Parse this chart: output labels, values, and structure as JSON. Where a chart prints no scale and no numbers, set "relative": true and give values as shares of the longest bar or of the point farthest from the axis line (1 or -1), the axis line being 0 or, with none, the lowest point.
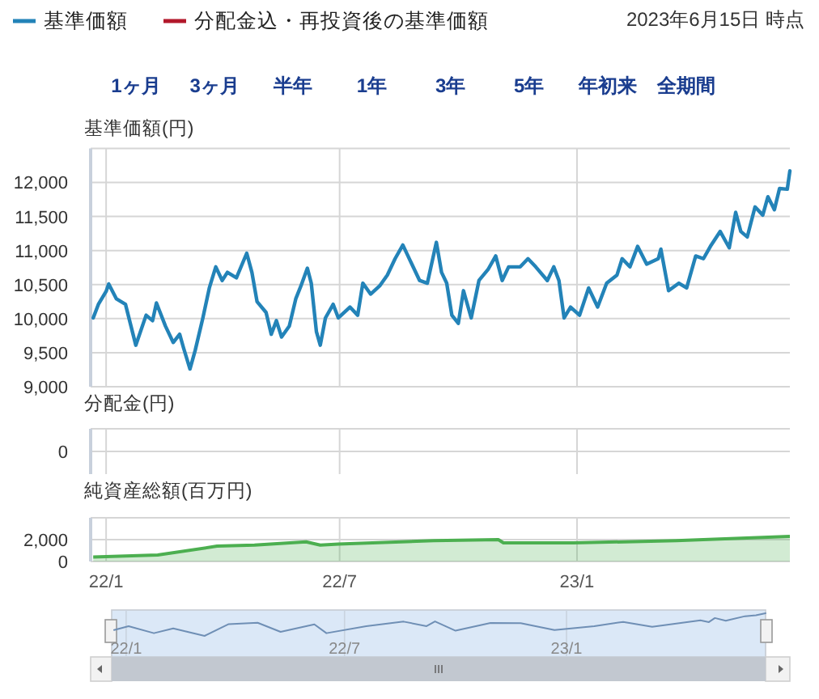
{
  "chart_data": [
    {
      "type": "line",
      "ylabel": "基準価額(円)",
      "legend": "top",
      "grid": true,
      "tick_labels": "y",
      "annotations": [
        "2023年6月15日 時点",
        "1ヶ月",
        "3ヶ月",
        "半年",
        "1年",
        "3年",
        "5年",
        "年初来",
        "全期間"
      ],
      "xlim": [
        "2021-12-20",
        "2023-06-15"
      ],
      "xticks": [
        {
          "value": "2022-01-01",
          "label": null
        },
        {
          "value": "2022-07-01",
          "label": null
        },
        {
          "value": "2023-01-01",
          "label": null
        }
      ],
      "ylim": [
        9000,
        12500
      ],
      "yticks": [
        {
          "value": 9000,
          "label": "9,000"
        },
        {
          "value": 9500,
          "label": "9,500"
        },
        {
          "value": 10000,
          "label": "10,000"
        },
        {
          "value": 10500,
          "label": "10,500"
        },
        {
          "value": 11000,
          "label": "11,000"
        },
        {
          "value": 11500,
          "label": "11,500"
        },
        {
          "value": 12000,
          "label": "12,000"
        }
      ],
      "x": [
        "2021-12-22",
        "2021-12-26",
        "2022-01-01",
        "2022-01-03",
        "2022-01-09",
        "2022-01-16",
        "2022-01-24",
        "2022-02-01",
        "2022-02-06",
        "2022-02-09",
        "2022-02-16",
        "2022-02-22",
        "2022-02-27",
        "2022-03-02",
        "2022-03-07",
        "2022-03-11",
        "2022-03-17",
        "2022-03-22",
        "2022-03-27",
        "2022-04-01",
        "2022-04-05",
        "2022-04-12",
        "2022-04-20",
        "2022-04-24",
        "2022-04-28",
        "2022-05-05",
        "2022-05-09",
        "2022-05-13",
        "2022-05-17",
        "2022-05-23",
        "2022-05-28",
        "2022-06-01",
        "2022-06-06",
        "2022-06-09",
        "2022-06-13",
        "2022-06-16",
        "2022-06-20",
        "2022-06-26",
        "2022-06-30",
        "2022-07-09",
        "2022-07-15",
        "2022-07-19",
        "2022-07-25",
        "2022-08-01",
        "2022-08-07",
        "2022-08-13",
        "2022-08-19",
        "2022-08-26",
        "2022-09-01",
        "2022-09-07",
        "2022-09-14",
        "2022-09-18",
        "2022-09-22",
        "2022-09-26",
        "2022-10-01",
        "2022-10-05",
        "2022-10-11",
        "2022-10-17",
        "2022-10-24",
        "2022-10-30",
        "2022-11-04",
        "2022-11-09",
        "2022-11-18",
        "2022-11-24",
        "2022-11-30",
        "2022-12-09",
        "2022-12-14",
        "2022-12-18",
        "2022-12-22",
        "2022-12-27",
        "2023-01-03",
        "2023-01-10",
        "2023-01-17",
        "2023-01-24",
        "2023-02-01",
        "2023-02-05",
        "2023-02-11",
        "2023-02-17",
        "2023-02-24",
        "2023-03-05",
        "2023-03-07",
        "2023-03-13",
        "2023-03-21",
        "2023-03-27",
        "2023-04-03",
        "2023-04-09",
        "2023-04-15",
        "2023-04-22",
        "2023-04-29",
        "2023-05-04",
        "2023-05-08",
        "2023-05-13",
        "2023-05-19",
        "2023-05-25",
        "2023-05-29",
        "2023-06-03",
        "2023-06-07",
        "2023-06-13",
        "2023-06-15"
      ],
      "series": [
        {
          "name": "基準価額",
          "color": "#2383b8",
          "values": [
            10010,
            10210,
            10400,
            10510,
            10290,
            10210,
            9610,
            10050,
            9970,
            10230,
            9890,
            9650,
            9770,
            9570,
            9260,
            9530,
            10010,
            10450,
            10760,
            10560,
            10680,
            10600,
            10960,
            10680,
            10250,
            10090,
            9770,
            9970,
            9730,
            9890,
            10290,
            10480,
            10740,
            10520,
            9810,
            9610,
            10010,
            10210,
            10010,
            10170,
            10050,
            10520,
            10360,
            10480,
            10640,
            10880,
            11080,
            10800,
            10560,
            10520,
            11120,
            10680,
            10520,
            10050,
            9930,
            10410,
            10010,
            10560,
            10720,
            10920,
            10560,
            10760,
            10760,
            10880,
            10760,
            10560,
            10760,
            10560,
            10010,
            10170,
            10050,
            10450,
            10170,
            10520,
            10640,
            10880,
            10760,
            11060,
            10800,
            10880,
            11020,
            10410,
            10520,
            10450,
            10920,
            10880,
            11080,
            11280,
            11040,
            11560,
            11280,
            11200,
            11640,
            11520,
            11790,
            11600,
            11910,
            11900,
            12170
          ]
        },
        {
          "name": "分配金込・再投資後の基準価額",
          "color": "#b2182b",
          "values": [
            null,
            null,
            null,
            null,
            null,
            null,
            null,
            null,
            null,
            null,
            null,
            null,
            null,
            null,
            null,
            null,
            null,
            null,
            null,
            null,
            null,
            null,
            null,
            null,
            null,
            null,
            null,
            null,
            null,
            null,
            null,
            null,
            null,
            null,
            null,
            null,
            null,
            null,
            null,
            null,
            null,
            null,
            null,
            null,
            null,
            null,
            null,
            null,
            null,
            null,
            null,
            null,
            null,
            null,
            null,
            null,
            null,
            null,
            null,
            null,
            null,
            null,
            null,
            null,
            null,
            null,
            null,
            null,
            null,
            null,
            null,
            null,
            null,
            null,
            null,
            null,
            null,
            null,
            null,
            null,
            null,
            null,
            null,
            null,
            null,
            null,
            null,
            null,
            null,
            null,
            null,
            null,
            null,
            null,
            null,
            null,
            null,
            null,
            null
          ]
        }
      ]
    },
    {
      "type": "other",
      "ylabel": "分配金(円)",
      "annotations": [
        "0"
      ]
    },
    {
      "type": "area",
      "ylabel": "純資産総額(百万円)",
      "grid": true,
      "color": "#4caf50",
      "xlim": [
        "2021-12-20",
        "2023-06-15"
      ],
      "xticks": [
        {
          "value": "2022-01-01",
          "label": "22/1"
        },
        {
          "value": "2022-07-01",
          "label": "22/7"
        },
        {
          "value": "2023-01-01",
          "label": "23/1"
        }
      ],
      "ylim": [
        0,
        4000
      ],
      "yticks": [
        0,
        {
          "value": 2000,
          "label": "2,000"
        }
      ],
      "x": [
        "2021-12-22",
        "2022-02-10",
        "2022-03-28",
        "2022-04-26",
        "2022-06-05",
        "2022-06-16",
        "2022-06-30",
        "2022-09-12",
        "2022-11-01",
        "2022-11-05",
        "2022-12-29",
        "2023-03-19",
        "2023-06-15"
      ],
      "values": [
        400,
        600,
        1400,
        1500,
        1800,
        1500,
        1600,
        1900,
        2000,
        1700,
        1700,
        1900,
        2300
      ]
    },
    {
      "type": "line",
      "relative": true,
      "color": "#6f8fb5",
      "grid": "x",
      "xlim": [
        "2021-12-20",
        "2023-06-15"
      ],
      "xticks": [
        {
          "value": "2022-01-01",
          "label": "22/1"
        },
        {
          "value": "2022-07-01",
          "label": "22/7"
        },
        {
          "value": "2023-01-01",
          "label": "23/1"
        }
      ],
      "x": [
        "2021-12-22",
        "2022-01-03",
        "2022-01-24",
        "2022-02-09",
        "2022-03-07",
        "2022-03-27",
        "2022-04-20",
        "2022-05-09",
        "2022-06-06",
        "2022-06-16",
        "2022-07-19",
        "2022-08-19",
        "2022-09-07",
        "2022-09-14",
        "2022-10-01",
        "2022-10-30",
        "2022-11-24",
        "2022-12-22",
        "2023-01-24",
        "2023-02-17",
        "2023-03-13",
        "2023-04-22",
        "2023-04-29",
        "2023-05-04",
        "2023-05-13",
        "2023-05-29",
        "2023-06-07",
        "2023-06-15"
      ],
      "values": [
        0.26,
        0.43,
        0.12,
        0.33,
        0,
        0.52,
        0.58,
        0.18,
        0.51,
        0.12,
        0.43,
        0.63,
        0.43,
        0.64,
        0.23,
        0.57,
        0.56,
        0.26,
        0.43,
        0.62,
        0.4,
        0.69,
        0.61,
        0.79,
        0.67,
        0.87,
        0.91,
        1
      ]
    }
  ]
}
